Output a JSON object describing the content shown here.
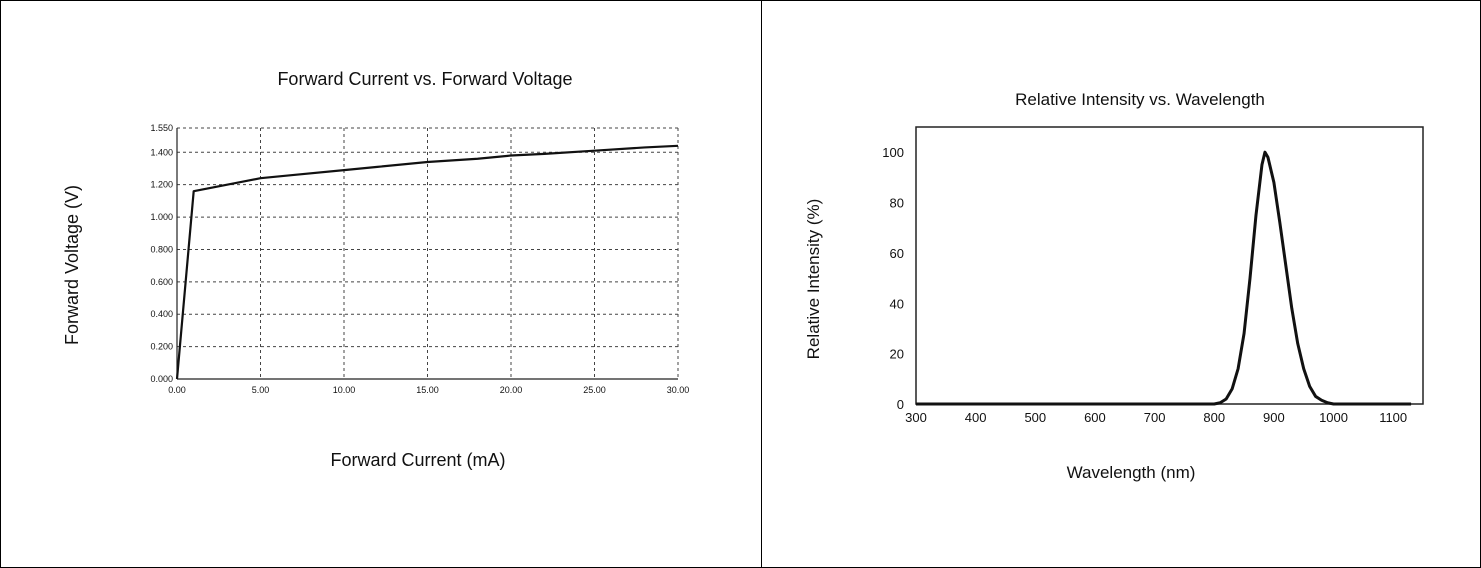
{
  "chart_data": [
    {
      "type": "line",
      "title": "Forward Current vs. Forward Voltage",
      "xlabel": "Forward Current (mA)",
      "ylabel": "Forward Voltage (V)",
      "xlim": [
        0,
        30
      ],
      "ylim": [
        0,
        1.55
      ],
      "x_ticks": [
        "0.00",
        "5.00",
        "10.00",
        "15.00",
        "20.00",
        "25.00",
        "30.00"
      ],
      "y_ticks": [
        "0.000",
        "0.200",
        "0.400",
        "0.600",
        "0.800",
        "1.000",
        "1.200",
        "1.400",
        "1.550"
      ],
      "grid": true,
      "series": [
        {
          "x": [
            0,
            1,
            2,
            3,
            4,
            5,
            7,
            10,
            12,
            15,
            18,
            20,
            22,
            25,
            28,
            30
          ],
          "y": [
            0.0,
            1.16,
            1.18,
            1.2,
            1.22,
            1.24,
            1.26,
            1.29,
            1.31,
            1.34,
            1.36,
            1.38,
            1.39,
            1.41,
            1.43,
            1.44
          ]
        }
      ]
    },
    {
      "type": "line",
      "title": "Relative Intensity vs. Wavelength",
      "xlabel": "Wavelength (nm)",
      "ylabel": "Relative Intensity (%)",
      "xlim": [
        300,
        1150
      ],
      "ylim": [
        0,
        110
      ],
      "x_ticks": [
        "300",
        "400",
        "500",
        "600",
        "700",
        "800",
        "900",
        "1000",
        "1100"
      ],
      "y_ticks": [
        "0",
        "20",
        "40",
        "60",
        "80",
        "100"
      ],
      "grid": false,
      "series": [
        {
          "x": [
            300,
            400,
            500,
            600,
            700,
            800,
            810,
            820,
            830,
            840,
            850,
            860,
            870,
            880,
            885,
            890,
            900,
            910,
            920,
            930,
            940,
            950,
            960,
            970,
            980,
            990,
            1000,
            1050,
            1100,
            1130
          ],
          "y": [
            0,
            0,
            0,
            0,
            0,
            0,
            0.5,
            2,
            6,
            14,
            28,
            50,
            75,
            95,
            100,
            98,
            88,
            72,
            55,
            38,
            24,
            14,
            7,
            3,
            1.5,
            0.5,
            0,
            0,
            0,
            0
          ]
        }
      ]
    }
  ]
}
